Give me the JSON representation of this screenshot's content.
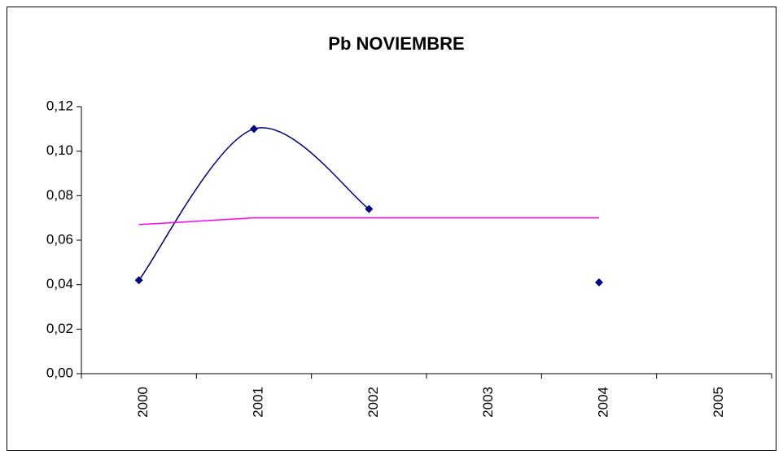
{
  "chart_data": {
    "type": "line",
    "title": "Pb NOVIEMBRE",
    "categories": [
      "2000",
      "2001",
      "2002",
      "2003",
      "2004",
      "2005"
    ],
    "series": [
      {
        "color": "#000080",
        "smooth": true,
        "markers": true,
        "values": [
          0.042,
          0.11,
          0.074,
          null,
          0.041,
          null
        ]
      },
      {
        "color": "#ff00ff",
        "smooth": false,
        "markers": false,
        "values": [
          0.067,
          0.07,
          0.07,
          0.07,
          0.07,
          null
        ]
      }
    ],
    "ylim": [
      0,
      0.12
    ],
    "yticks": [
      {
        "value": 0,
        "label": "0,00"
      },
      {
        "value": 0.02,
        "label": "0,02"
      },
      {
        "value": 0.04,
        "label": "0,04"
      },
      {
        "value": 0.06,
        "label": "0,06"
      },
      {
        "value": 0.08,
        "label": "0,08"
      },
      {
        "value": 0.1,
        "label": "0,10"
      },
      {
        "value": 0.12,
        "label": "0,12"
      }
    ],
    "grid": false
  }
}
